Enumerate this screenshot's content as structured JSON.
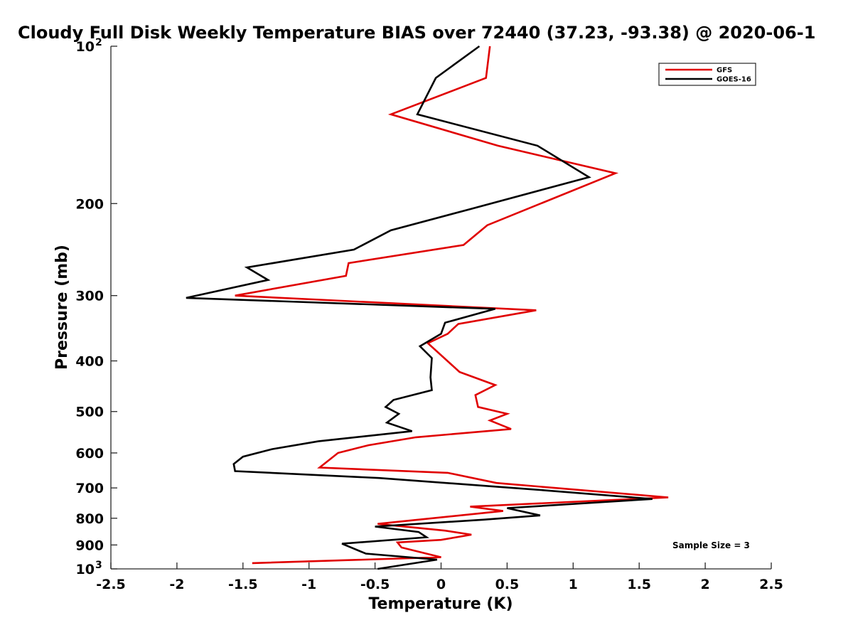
{
  "chart_data": {
    "type": "line",
    "title": "Cloudy Full Disk Weekly Temperature BIAS over 72440 (37.23, -93.38) @ 2020-06-1",
    "xlabel": "Temperature (K)",
    "ylabel": "Pressure (mb)",
    "xlim": [
      -2.5,
      2.5
    ],
    "ylim": [
      100,
      1000
    ],
    "y_scale": "log",
    "y_reversed": true,
    "grid": false,
    "legend_position": "top-right",
    "x_ticks": [
      {
        "value": -2.5,
        "label": "-2.5"
      },
      {
        "value": -2,
        "label": "-2"
      },
      {
        "value": -1.5,
        "label": "-1.5"
      },
      {
        "value": -1,
        "label": "-1"
      },
      {
        "value": -0.5,
        "label": "-0.5"
      },
      {
        "value": 0,
        "label": "0"
      },
      {
        "value": 0.5,
        "label": "0.5"
      },
      {
        "value": 1,
        "label": "1"
      },
      {
        "value": 1.5,
        "label": "1.5"
      },
      {
        "value": 2,
        "label": "2"
      },
      {
        "value": 2.5,
        "label": "2.5"
      }
    ],
    "y_ticks": [
      {
        "value": 200,
        "label": "200"
      },
      {
        "value": 300,
        "label": "300"
      },
      {
        "value": 400,
        "label": "400"
      },
      {
        "value": 500,
        "label": "500"
      },
      {
        "value": 600,
        "label": "600"
      },
      {
        "value": 700,
        "label": "700"
      },
      {
        "value": 800,
        "label": "800"
      },
      {
        "value": 900,
        "label": "900"
      }
    ],
    "y_tick_labels_power": [
      {
        "value": 100,
        "base": "10",
        "exponent": "2"
      },
      {
        "value": 1000,
        "base": "10",
        "exponent": "3"
      }
    ],
    "annotation": "Sample Size = 3",
    "series": [
      {
        "name": "GFS",
        "color": "#e00000",
        "points": [
          [
            0.37,
            100
          ],
          [
            0.34,
            115
          ],
          [
            -0.38,
            135
          ],
          [
            0.43,
            155
          ],
          [
            1.32,
            175
          ],
          [
            0.35,
            220
          ],
          [
            0.17,
            240
          ],
          [
            -0.7,
            260
          ],
          [
            -0.72,
            275
          ],
          [
            -1.56,
            300
          ],
          [
            0.72,
            320
          ],
          [
            0.13,
            340
          ],
          [
            0.05,
            355
          ],
          [
            -0.1,
            370
          ],
          [
            0.14,
            420
          ],
          [
            0.41,
            445
          ],
          [
            0.26,
            465
          ],
          [
            0.28,
            490
          ],
          [
            0.5,
            505
          ],
          [
            0.37,
            520
          ],
          [
            0.53,
            540
          ],
          [
            -0.19,
            560
          ],
          [
            -0.55,
            580
          ],
          [
            -0.78,
            600
          ],
          [
            -0.92,
            640
          ],
          [
            0.05,
            655
          ],
          [
            0.42,
            685
          ],
          [
            1.72,
            730
          ],
          [
            0.22,
            760
          ],
          [
            0.47,
            775
          ],
          [
            -0.48,
            820
          ],
          [
            0.03,
            845
          ],
          [
            0.23,
            860
          ],
          [
            0.0,
            880
          ],
          [
            -0.33,
            890
          ],
          [
            -0.3,
            910
          ],
          [
            0.0,
            950
          ],
          [
            -1.43,
            975
          ]
        ]
      },
      {
        "name": "GOES-16",
        "color": "#000000",
        "points": [
          [
            0.29,
            100
          ],
          [
            -0.04,
            115
          ],
          [
            -0.18,
            135
          ],
          [
            0.73,
            155
          ],
          [
            1.12,
            178
          ],
          [
            0.22,
            205
          ],
          [
            -0.38,
            225
          ],
          [
            -0.66,
            245
          ],
          [
            -1.47,
            265
          ],
          [
            -1.31,
            280
          ],
          [
            -1.93,
            303
          ],
          [
            0.41,
            318
          ],
          [
            0.03,
            338
          ],
          [
            0.0,
            355
          ],
          [
            -0.16,
            375
          ],
          [
            -0.07,
            395
          ],
          [
            -0.08,
            430
          ],
          [
            -0.07,
            455
          ],
          [
            -0.36,
            475
          ],
          [
            -0.42,
            490
          ],
          [
            -0.32,
            505
          ],
          [
            -0.41,
            525
          ],
          [
            -0.22,
            545
          ],
          [
            -0.93,
            570
          ],
          [
            -1.28,
            590
          ],
          [
            -1.5,
            610
          ],
          [
            -1.57,
            630
          ],
          [
            -1.56,
            650
          ],
          [
            -0.47,
            670
          ],
          [
            0.71,
            705
          ],
          [
            1.6,
            735
          ],
          [
            0.5,
            765
          ],
          [
            0.75,
            790
          ],
          [
            0.32,
            805
          ],
          [
            -0.5,
            830
          ],
          [
            -0.17,
            850
          ],
          [
            -0.11,
            870
          ],
          [
            -0.75,
            895
          ],
          [
            -0.57,
            935
          ],
          [
            -0.03,
            960
          ],
          [
            -0.48,
            1000
          ]
        ]
      }
    ]
  }
}
